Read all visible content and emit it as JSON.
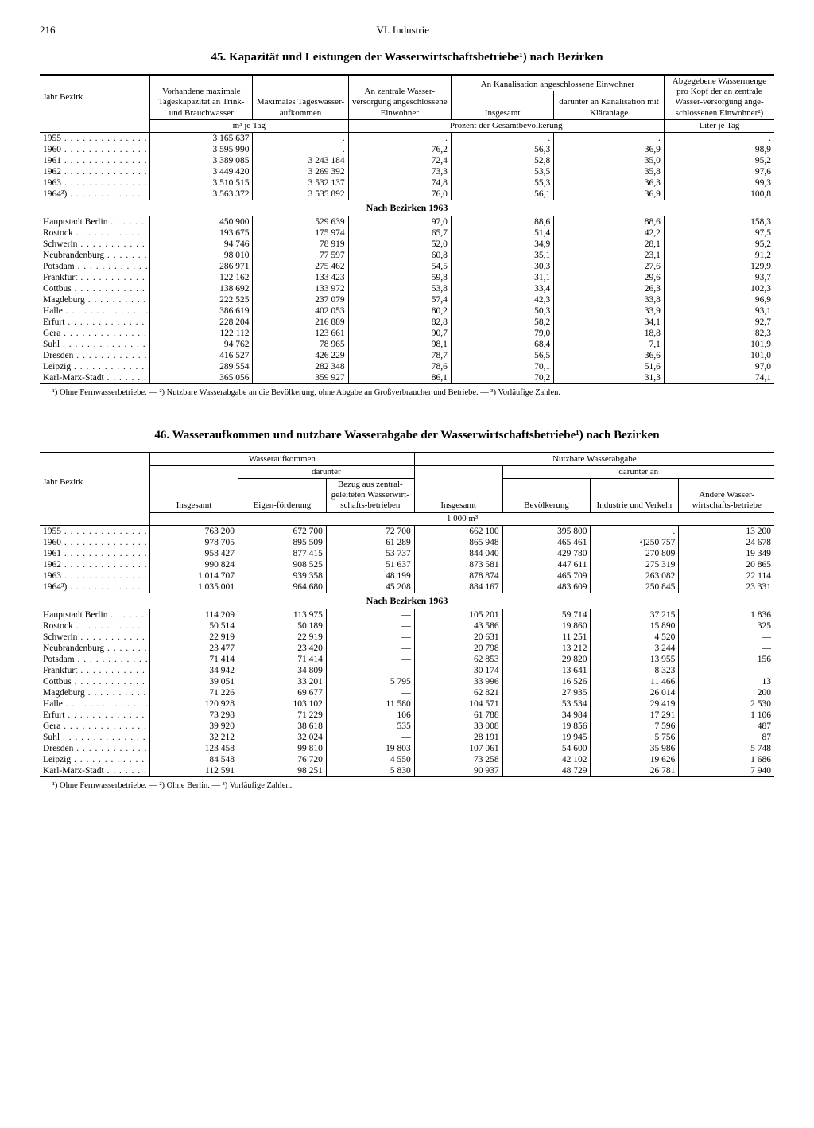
{
  "page_number": "216",
  "section_header": "VI. Industrie",
  "table45": {
    "title": "45. Kapazität und Leistungen der Wasserwirtschaftsbetriebe¹) nach Bezirken",
    "col_stub": "Jahr\nBezirk",
    "col1": "Vorhandene maximale Tageskapazität an Trink- und Brauchwasser",
    "col2": "Maximales Tageswasser-aufkommen",
    "col3": "An zentrale Wasser-versorgung angeschlossene Einwohner",
    "col_kanal": "An Kanalisation angeschlossene Einwohner",
    "col4": "Insgesamt",
    "col5": "darunter an Kanalisation mit Kläranlage",
    "col6": "Abgegebene Wassermenge pro Kopf der an zentrale Wasser-versorgung ange-schlossenen Einwohner²)",
    "unit_m3": "m³ je Tag",
    "unit_pct": "Prozent der Gesamtbevölkerung",
    "unit_l": "Liter je Tag",
    "sub_header": "Nach Bezirken 1963",
    "years": [
      {
        "l": "1955",
        "c1": "3 165 637",
        "c2": ".",
        "c3": ".",
        "c4": ".",
        "c5": ".",
        "c6": "."
      },
      {
        "l": "1960",
        "c1": "3 595 990",
        "c2": ".",
        "c3": "76,2",
        "c4": "56,3",
        "c5": "36,9",
        "c6": "98,9"
      },
      {
        "l": "1961",
        "c1": "3 389 085",
        "c2": "3 243 184",
        "c3": "72,4",
        "c4": "52,8",
        "c5": "35,0",
        "c6": "95,2"
      },
      {
        "l": "1962",
        "c1": "3 449 420",
        "c2": "3 269 392",
        "c3": "73,3",
        "c4": "53,5",
        "c5": "35,8",
        "c6": "97,6"
      },
      {
        "l": "1963",
        "c1": "3 510 515",
        "c2": "3 532 137",
        "c3": "74,8",
        "c4": "55,3",
        "c5": "36,3",
        "c6": "99,3"
      },
      {
        "l": "1964³)",
        "c1": "3 563 372",
        "c2": "3 535 892",
        "c3": "76,0",
        "c4": "56,1",
        "c5": "36,9",
        "c6": "100,8"
      }
    ],
    "districts": [
      {
        "l": "Hauptstadt Berlin",
        "c1": "450 900",
        "c2": "529 639",
        "c3": "97,0",
        "c4": "88,6",
        "c5": "88,6",
        "c6": "158,3"
      },
      {
        "l": "Rostock",
        "c1": "193 675",
        "c2": "175 974",
        "c3": "65,7",
        "c4": "51,4",
        "c5": "42,2",
        "c6": "97,5"
      },
      {
        "l": "Schwerin",
        "c1": "94 746",
        "c2": "78 919",
        "c3": "52,0",
        "c4": "34,9",
        "c5": "28,1",
        "c6": "95,2"
      },
      {
        "l": "Neubrandenburg",
        "c1": "98 010",
        "c2": "77 597",
        "c3": "60,8",
        "c4": "35,1",
        "c5": "23,1",
        "c6": "91,2"
      },
      {
        "l": "Potsdam",
        "c1": "286 971",
        "c2": "275 462",
        "c3": "54,5",
        "c4": "30,3",
        "c5": "27,6",
        "c6": "129,9"
      },
      {
        "l": "Frankfurt",
        "c1": "122 162",
        "c2": "133 423",
        "c3": "59,8",
        "c4": "31,1",
        "c5": "29,6",
        "c6": "93,7"
      },
      {
        "l": "Cottbus",
        "c1": "138 692",
        "c2": "133 972",
        "c3": "53,8",
        "c4": "33,4",
        "c5": "26,3",
        "c6": "102,3"
      },
      {
        "l": "Magdeburg",
        "c1": "222 525",
        "c2": "237 079",
        "c3": "57,4",
        "c4": "42,3",
        "c5": "33,8",
        "c6": "96,9"
      },
      {
        "l": "Halle",
        "c1": "386 619",
        "c2": "402 053",
        "c3": "80,2",
        "c4": "50,3",
        "c5": "33,9",
        "c6": "93,1"
      },
      {
        "l": "Erfurt",
        "c1": "228 204",
        "c2": "216 889",
        "c3": "82,8",
        "c4": "58,2",
        "c5": "34,1",
        "c6": "92,7"
      },
      {
        "l": "Gera",
        "c1": "122 112",
        "c2": "123 661",
        "c3": "90,7",
        "c4": "79,0",
        "c5": "18,8",
        "c6": "82,3"
      },
      {
        "l": "Suhl",
        "c1": "94 762",
        "c2": "78 965",
        "c3": "98,1",
        "c4": "68,4",
        "c5": "7,1",
        "c6": "101,9"
      },
      {
        "l": "Dresden",
        "c1": "416 527",
        "c2": "426 229",
        "c3": "78,7",
        "c4": "56,5",
        "c5": "36,6",
        "c6": "101,0"
      },
      {
        "l": "Leipzig",
        "c1": "289 554",
        "c2": "282 348",
        "c3": "78,6",
        "c4": "70,1",
        "c5": "51,6",
        "c6": "97,0"
      },
      {
        "l": "Karl-Marx-Stadt",
        "c1": "365 056",
        "c2": "359 927",
        "c3": "86,1",
        "c4": "70,2",
        "c5": "31,3",
        "c6": "74,1"
      }
    ],
    "footnote": "¹) Ohne Fernwasserbetriebe. — ²) Nutzbare Wasserabgabe an die Bevölkerung, ohne Abgabe an Großverbraucher und Betriebe. — ³) Vorläufige Zahlen."
  },
  "table46": {
    "title": "46. Wasseraufkommen und nutzbare Wasserabgabe der Wasserwirtschaftsbetriebe¹) nach Bezirken",
    "col_stub": "Jahr\nBezirk",
    "grp_auf": "Wasseraufkommen",
    "grp_abg": "Nutzbare Wasserabgabe",
    "sub_darunter": "darunter",
    "sub_darunter_an": "darunter an",
    "col1": "Insgesamt",
    "col2": "Eigen-förderung",
    "col3": "Bezug aus zentral-geleiteten Wasserwirt-schafts-betrieben",
    "col4": "Insgesamt",
    "col5": "Bevölkerung",
    "col6": "Industrie und Verkehr",
    "col7": "Andere Wasser-wirtschafts-betriebe",
    "unit": "1 000 m³",
    "sub_header": "Nach Bezirken 1963",
    "years": [
      {
        "l": "1955",
        "c1": "763 200",
        "c2": "672 700",
        "c3": "72 700",
        "c4": "662 100",
        "c5": "395 800",
        "c6": ".",
        "c7": "13 200"
      },
      {
        "l": "1960",
        "c1": "978 705",
        "c2": "895 509",
        "c3": "61 289",
        "c4": "865 948",
        "c5": "465 461",
        "c6": "²)250 757",
        "c7": "24 678"
      },
      {
        "l": "1961",
        "c1": "958 427",
        "c2": "877 415",
        "c3": "53 737",
        "c4": "844 040",
        "c5": "429 780",
        "c6": "270 809",
        "c7": "19 349"
      },
      {
        "l": "1962",
        "c1": "990 824",
        "c2": "908 525",
        "c3": "51 637",
        "c4": "873 581",
        "c5": "447 611",
        "c6": "275 319",
        "c7": "20 865"
      },
      {
        "l": "1963",
        "c1": "1 014 707",
        "c2": "939 358",
        "c3": "48 199",
        "c4": "878 874",
        "c5": "465 709",
        "c6": "263 082",
        "c7": "22 114"
      },
      {
        "l": "1964³)",
        "c1": "1 035 001",
        "c2": "964 680",
        "c3": "45 208",
        "c4": "884 167",
        "c5": "483 609",
        "c6": "250 845",
        "c7": "23 331"
      }
    ],
    "districts": [
      {
        "l": "Hauptstadt Berlin",
        "c1": "114 209",
        "c2": "113 975",
        "c3": "—",
        "c4": "105 201",
        "c5": "59 714",
        "c6": "37 215",
        "c7": "1 836"
      },
      {
        "l": "Rostock",
        "c1": "50 514",
        "c2": "50 189",
        "c3": "—",
        "c4": "43 586",
        "c5": "19 860",
        "c6": "15 890",
        "c7": "325"
      },
      {
        "l": "Schwerin",
        "c1": "22 919",
        "c2": "22 919",
        "c3": "—",
        "c4": "20 631",
        "c5": "11 251",
        "c6": "4 520",
        "c7": "—"
      },
      {
        "l": "Neubrandenburg",
        "c1": "23 477",
        "c2": "23 420",
        "c3": "—",
        "c4": "20 798",
        "c5": "13 212",
        "c6": "3 244",
        "c7": "—"
      },
      {
        "l": "Potsdam",
        "c1": "71 414",
        "c2": "71 414",
        "c3": "—",
        "c4": "62 853",
        "c5": "29 820",
        "c6": "13 955",
        "c7": "156"
      },
      {
        "l": "Frankfurt",
        "c1": "34 942",
        "c2": "34 809",
        "c3": "—",
        "c4": "30 174",
        "c5": "13 641",
        "c6": "8 323",
        "c7": "—"
      },
      {
        "l": "Cottbus",
        "c1": "39 051",
        "c2": "33 201",
        "c3": "5 795",
        "c4": "33 996",
        "c5": "16 526",
        "c6": "11 466",
        "c7": "13"
      },
      {
        "l": "Magdeburg",
        "c1": "71 226",
        "c2": "69 677",
        "c3": "—",
        "c4": "62 821",
        "c5": "27 935",
        "c6": "26 014",
        "c7": "200"
      },
      {
        "l": "Halle",
        "c1": "120 928",
        "c2": "103 102",
        "c3": "11 580",
        "c4": "104 571",
        "c5": "53 534",
        "c6": "29 419",
        "c7": "2 530"
      },
      {
        "l": "Erfurt",
        "c1": "73 298",
        "c2": "71 229",
        "c3": "106",
        "c4": "61 788",
        "c5": "34 984",
        "c6": "17 291",
        "c7": "1 106"
      },
      {
        "l": "Gera",
        "c1": "39 920",
        "c2": "38 618",
        "c3": "535",
        "c4": "33 008",
        "c5": "19 856",
        "c6": "7 596",
        "c7": "487"
      },
      {
        "l": "Suhl",
        "c1": "32 212",
        "c2": "32 024",
        "c3": "—",
        "c4": "28 191",
        "c5": "19 945",
        "c6": "5 756",
        "c7": "87"
      },
      {
        "l": "Dresden",
        "c1": "123 458",
        "c2": "99 810",
        "c3": "19 803",
        "c4": "107 061",
        "c5": "54 600",
        "c6": "35 986",
        "c7": "5 748"
      },
      {
        "l": "Leipzig",
        "c1": "84 548",
        "c2": "76 720",
        "c3": "4 550",
        "c4": "73 258",
        "c5": "42 102",
        "c6": "19 626",
        "c7": "1 686"
      },
      {
        "l": "Karl-Marx-Stadt",
        "c1": "112 591",
        "c2": "98 251",
        "c3": "5 830",
        "c4": "90 937",
        "c5": "48 729",
        "c6": "26 781",
        "c7": "7 940"
      }
    ],
    "footnote": "¹) Ohne Fernwasserbetriebe. — ²) Ohne Berlin. — ³) Vorläufige Zahlen."
  }
}
